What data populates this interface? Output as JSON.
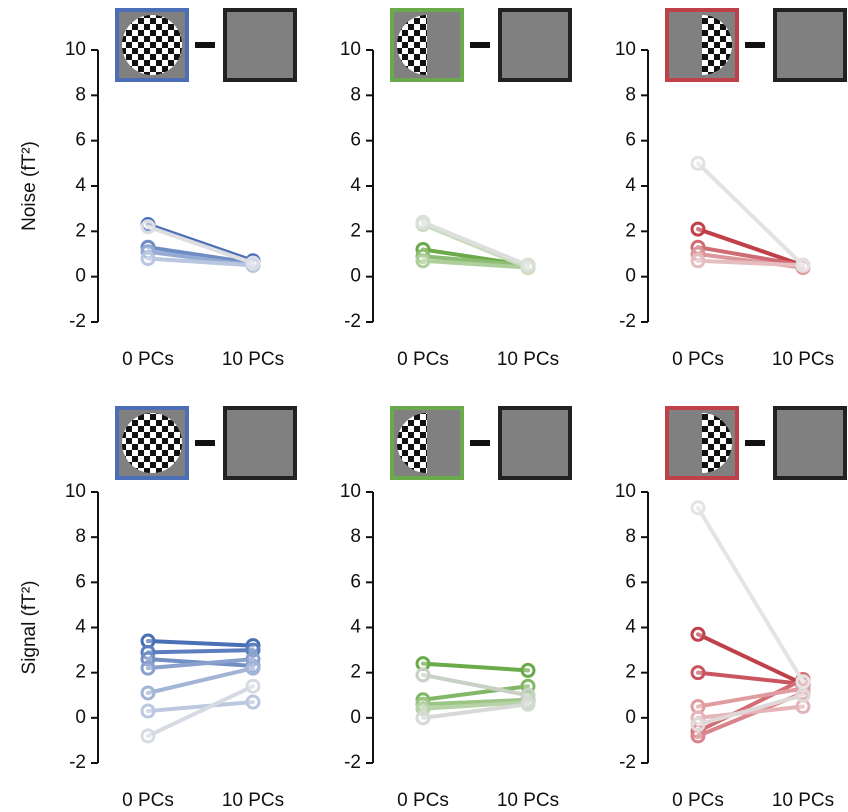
{
  "chart_data": [
    {
      "type": "line",
      "ylabel": "Noise (fT²)",
      "categories": [
        "0 PCs",
        "10 PCs"
      ],
      "ylim": [
        -2,
        10
      ],
      "yticks": [
        -2,
        0,
        2,
        4,
        6,
        8,
        10
      ],
      "series": [
        {
          "color": "#4a6fb5",
          "values": [
            2.3,
            0.7
          ]
        },
        {
          "color": "#6f8cc4",
          "values": [
            1.3,
            0.6
          ]
        },
        {
          "color": "#95aad3",
          "values": [
            1.1,
            0.5
          ]
        },
        {
          "color": "#b9c6e0",
          "values": [
            0.8,
            0.5
          ]
        },
        {
          "color": "#dcdee4",
          "values": [
            2.2,
            0.6
          ]
        }
      ]
    },
    {
      "type": "line",
      "categories": [
        "0 PCs",
        "10 PCs"
      ],
      "ylim": [
        -2,
        10
      ],
      "yticks": [
        -2,
        0,
        2,
        4,
        6,
        8,
        10
      ],
      "series": [
        {
          "color": "#6aaa4a",
          "values": [
            1.2,
            0.5
          ]
        },
        {
          "color": "#8dbd73",
          "values": [
            0.9,
            0.5
          ]
        },
        {
          "color": "#aecf9c",
          "values": [
            0.7,
            0.4
          ]
        },
        {
          "color": "#c9dcbf",
          "values": [
            2.3,
            0.4
          ]
        },
        {
          "color": "#dcdfdc",
          "values": [
            2.4,
            0.5
          ]
        }
      ]
    },
    {
      "type": "line",
      "categories": [
        "0 PCs",
        "10 PCs"
      ],
      "ylim": [
        -2,
        10
      ],
      "yticks": [
        -2,
        0,
        2,
        4,
        6,
        8,
        10
      ],
      "series": [
        {
          "color": "#c0404a",
          "values": [
            2.1,
            0.5
          ]
        },
        {
          "color": "#cf6b72",
          "values": [
            1.3,
            0.5
          ]
        },
        {
          "color": "#dc979b",
          "values": [
            1.0,
            0.4
          ]
        },
        {
          "color": "#e6bdbf",
          "values": [
            0.7,
            0.5
          ]
        },
        {
          "color": "#e2e2e2",
          "values": [
            5.0,
            0.5
          ]
        }
      ]
    },
    {
      "type": "line",
      "ylabel": "Signal (fT²)",
      "categories": [
        "0 PCs",
        "10 PCs"
      ],
      "ylim": [
        -2,
        10
      ],
      "yticks": [
        -2,
        0,
        2,
        4,
        6,
        8,
        10
      ],
      "series": [
        {
          "color": "#4a6fb5",
          "values": [
            3.4,
            3.2
          ]
        },
        {
          "color": "#5d7ebc",
          "values": [
            2.9,
            3.0
          ]
        },
        {
          "color": "#728fc4",
          "values": [
            2.6,
            2.3
          ]
        },
        {
          "color": "#8aa1cd",
          "values": [
            2.2,
            2.6
          ]
        },
        {
          "color": "#a3b5d7",
          "values": [
            1.1,
            2.2
          ]
        },
        {
          "color": "#bcc8e0",
          "values": [
            0.3,
            0.7
          ]
        },
        {
          "color": "#d6dae3",
          "values": [
            -0.8,
            1.4
          ]
        }
      ]
    },
    {
      "type": "line",
      "categories": [
        "0 PCs",
        "10 PCs"
      ],
      "ylim": [
        -2,
        10
      ],
      "yticks": [
        -2,
        0,
        2,
        4,
        6,
        8,
        10
      ],
      "series": [
        {
          "color": "#6aaa4a",
          "values": [
            2.4,
            2.1
          ]
        },
        {
          "color": "#82b766",
          "values": [
            0.8,
            1.4
          ]
        },
        {
          "color": "#9cc585",
          "values": [
            0.6,
            0.8
          ]
        },
        {
          "color": "#b6d2a6",
          "values": [
            0.4,
            0.7
          ]
        },
        {
          "color": "#c8d1c4",
          "values": [
            1.9,
            1.0
          ]
        },
        {
          "color": "#d6d9d6",
          "values": [
            0.0,
            0.6
          ]
        }
      ]
    },
    {
      "type": "line",
      "categories": [
        "0 PCs",
        "10 PCs"
      ],
      "ylim": [
        -2,
        10
      ],
      "yticks": [
        -2,
        0,
        2,
        4,
        6,
        8,
        10
      ],
      "series": [
        {
          "color": "#c0404a",
          "values": [
            3.7,
            1.5
          ]
        },
        {
          "color": "#c9565f",
          "values": [
            2.0,
            1.5
          ]
        },
        {
          "color": "#d26d74",
          "values": [
            -0.6,
            1.7
          ]
        },
        {
          "color": "#d9848a",
          "values": [
            -0.8,
            1.1
          ]
        },
        {
          "color": "#e09ca0",
          "values": [
            0.5,
            1.3
          ]
        },
        {
          "color": "#e6b4b7",
          "values": [
            0.0,
            0.5
          ]
        },
        {
          "color": "#e0d8d8",
          "values": [
            -0.3,
            1.0
          ]
        },
        {
          "color": "#e4e4e4",
          "values": [
            9.3,
            1.6
          ]
        }
      ]
    }
  ]
}
